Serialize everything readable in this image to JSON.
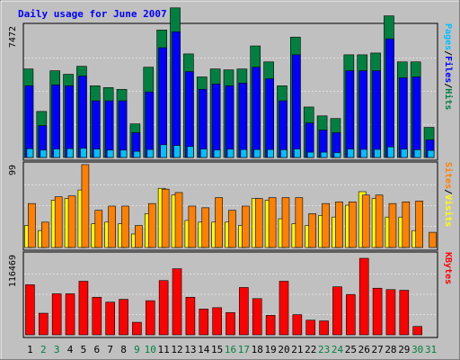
{
  "chart_data": {
    "type": "bar",
    "title": "Daily usage for June 2007",
    "categories": [
      "1",
      "2",
      "3",
      "4",
      "5",
      "6",
      "7",
      "8",
      "9",
      "10",
      "11",
      "12",
      "13",
      "14",
      "15",
      "16",
      "17",
      "18",
      "19",
      "20",
      "21",
      "22",
      "23",
      "24",
      "25",
      "26",
      "27",
      "28",
      "29",
      "30",
      "31"
    ],
    "weekend_days": [
      2,
      3,
      9,
      10,
      16,
      17,
      23,
      24,
      30,
      31
    ],
    "colors": {
      "background": "#c0c0c0",
      "title": "#0000ff",
      "hits": "#008040",
      "files": "#0000ff",
      "pages": "#00c0ff",
      "visits": "#ffff00",
      "sites": "#ff8000",
      "kbytes": "#ff0000",
      "weekend_label": "#008040"
    },
    "panels": [
      {
        "name": "requests",
        "ymax": 7472,
        "ymax_label": "7472",
        "legend": [
          "Pages",
          "/",
          "Files",
          "/",
          "Hits"
        ],
        "legend_colors": [
          "#00c0ff",
          "#000000",
          "#0000ff",
          "#000000",
          "#008040"
        ],
        "series": [
          {
            "name": "Hits",
            "values": [
              5000,
              2600,
              4900,
              4700,
              5150,
              4050,
              3950,
              3850,
              1900,
              5100,
              7200,
              8450,
              5850,
              4550,
              5000,
              4950,
              5000,
              6300,
              5400,
              4050,
              6800,
              2850,
              2350,
              2200,
              5800,
              5800,
              5900,
              8000,
              5400,
              5400,
              1700
            ]
          },
          {
            "name": "Files",
            "values": [
              4050,
              1800,
              4100,
              4050,
              4600,
              3200,
              3200,
              3200,
              1400,
              3700,
              6200,
              7100,
              4850,
              3850,
              4150,
              4050,
              4200,
              5100,
              4450,
              3200,
              5800,
              1950,
              1550,
              1400,
              4900,
              4900,
              4900,
              6700,
              4500,
              4550,
              1000
            ]
          },
          {
            "name": "Pages",
            "values": [
              500,
              420,
              480,
              500,
              520,
              480,
              420,
              420,
              350,
              450,
              720,
              680,
              620,
              480,
              420,
              470,
              450,
              450,
              450,
              440,
              480,
              300,
              300,
              280,
              480,
              460,
              460,
              600,
              470,
              440,
              400
            ]
          }
        ]
      },
      {
        "name": "visitors",
        "ymax": 99,
        "ymax_label": "99",
        "legend": [
          "Sites",
          "/",
          "Visits"
        ],
        "legend_colors": [
          "#ff8000",
          "#000000",
          "#ffff00"
        ],
        "series": [
          {
            "name": "Visits",
            "values": [
              26,
              20,
              56,
              58,
              68,
              28,
              30,
              28,
              16,
              40,
              70,
              62,
              32,
              30,
              30,
              30,
              26,
              58,
              56,
              34,
              28,
              26,
              38,
              36,
              50,
              66,
              58,
              36,
              36,
              20,
              0
            ]
          },
          {
            "name": "Sites",
            "values": [
              52,
              30,
              60,
              61,
              98,
              44,
              49,
              49,
              26,
              52,
              69,
              65,
              49,
              47,
              59,
              44,
              49,
              58,
              59,
              59,
              59,
              40,
              52,
              54,
              54,
              62,
              62,
              52,
              54,
              55,
              18
            ]
          }
        ]
      },
      {
        "name": "volume",
        "ymax": 116469,
        "ymax_label": "116469",
        "legend": [
          "KBytes"
        ],
        "legend_colors": [
          "#ff0000"
        ],
        "series": [
          {
            "name": "KBytes",
            "values": [
              72000,
              31000,
              59000,
              59000,
              77000,
              54000,
              47000,
              51000,
              18000,
              49000,
              78000,
              95000,
              54000,
              37000,
              39000,
              32000,
              68000,
              52000,
              28000,
              77000,
              29000,
              21000,
              20000,
              69000,
              58000,
              110000,
              67000,
              65000,
              64000,
              12000,
              0
            ]
          }
        ]
      }
    ]
  }
}
